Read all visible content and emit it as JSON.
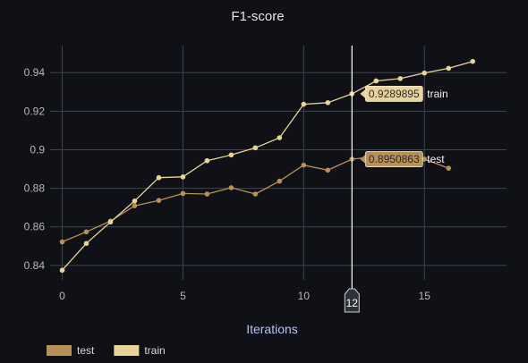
{
  "chart_data": {
    "type": "line",
    "title": "F1-score",
    "xlabel": "Iterations",
    "ylabel": "",
    "xlim": [
      -0.5,
      18.4
    ],
    "ylim": [
      0.8325,
      0.954
    ],
    "x_ticks": [
      0,
      5,
      10,
      15
    ],
    "x_tick_labels": [
      "0",
      "5",
      "10",
      "15"
    ],
    "y_ticks": [
      0.84,
      0.86,
      0.88,
      0.9,
      0.92,
      0.94
    ],
    "y_tick_labels": [
      "0.84",
      "0.86",
      "0.88",
      "0.9",
      "0.92",
      "0.94"
    ],
    "grid": true,
    "legend_position": "bottom-left",
    "cursor": {
      "x": 12,
      "label": "12"
    },
    "series": [
      {
        "name": "test",
        "color": "#b8905a",
        "x": [
          0,
          1,
          2,
          3,
          4,
          5,
          6,
          7,
          8,
          9,
          10,
          11,
          12,
          13,
          14,
          15,
          16
        ],
        "values": [
          0.8522,
          0.8574,
          0.863,
          0.8709,
          0.8737,
          0.8773,
          0.877,
          0.8803,
          0.877,
          0.8837,
          0.892,
          0.8894,
          0.8950863,
          0.8965,
          0.8954,
          0.8951,
          0.8904
        ],
        "tooltip": "0.8950863"
      },
      {
        "name": "train",
        "color": "#e8d49a",
        "x": [
          0,
          1,
          2,
          3,
          4,
          5,
          6,
          7,
          8,
          9,
          10,
          11,
          12,
          13,
          14,
          15,
          16,
          17
        ],
        "values": [
          0.8375,
          0.8514,
          0.8625,
          0.8734,
          0.8855,
          0.8859,
          0.8943,
          0.8973,
          0.901,
          0.9062,
          0.9236,
          0.9244,
          0.9289895,
          0.9357,
          0.9369,
          0.9398,
          0.9422,
          0.9458
        ],
        "tooltip": "0.9289895"
      }
    ]
  }
}
